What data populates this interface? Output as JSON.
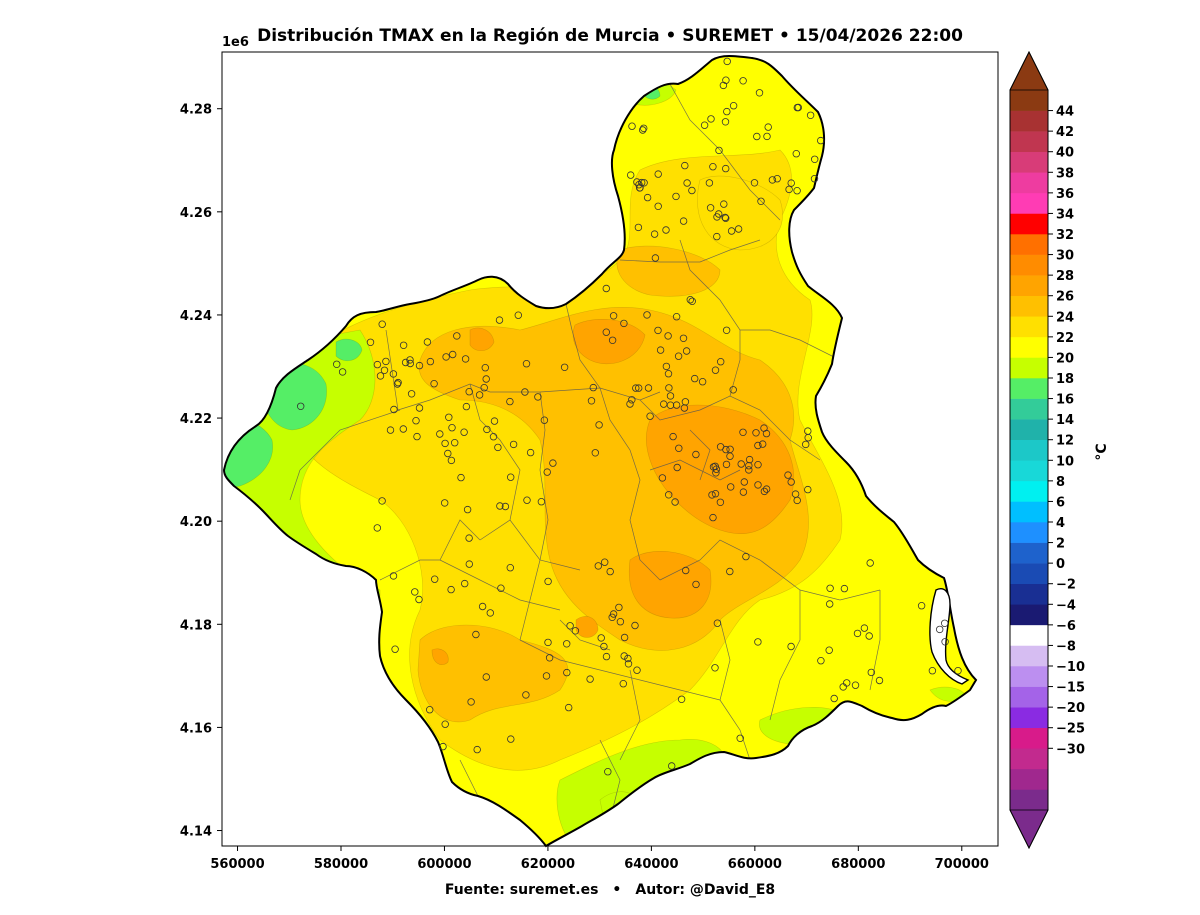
{
  "title": "Distribución TMAX en la Región de Murcia • SUREMET • 15/04/2026 22:00",
  "footer": {
    "source": "Fuente: suremet.es",
    "separator": "•",
    "author": "Autor: @David_E8"
  },
  "axes": {
    "y_offset_label": "1e6",
    "x_ticks": [
      "560000",
      "580000",
      "600000",
      "620000",
      "640000",
      "660000",
      "680000",
      "700000"
    ],
    "y_ticks": [
      "4.14",
      "4.16",
      "4.18",
      "4.20",
      "4.22",
      "4.24",
      "4.26",
      "4.28"
    ],
    "x_range": [
      557000,
      707000
    ],
    "y_range": [
      4137000,
      4291000
    ]
  },
  "colorbar": {
    "label": "°C",
    "tick_labels": [
      "44",
      "42",
      "40",
      "38",
      "36",
      "34",
      "32",
      "30",
      "28",
      "26",
      "24",
      "22",
      "20",
      "18",
      "16",
      "14",
      "12",
      "10",
      "8",
      "6",
      "4",
      "2",
      "0",
      "-2",
      "-4",
      "-6",
      "-8",
      "-10",
      "-15",
      "-20",
      "-25",
      "-30"
    ],
    "band_colors": [
      "#7b2b8c",
      "#a0288e",
      "#c22a8e",
      "#d81b8a",
      "#8a2be2",
      "#a463e8",
      "#bc8ff0",
      "#d6bdf2",
      "#ffffff",
      "#1a1a72",
      "#192f93",
      "#1a4bb4",
      "#1e62cc",
      "#1e90ff",
      "#00bfff",
      "#00f0f0",
      "#18d8d8",
      "#1cc8c8",
      "#20b2aa",
      "#33cc99",
      "#55ee66",
      "#c6ff00",
      "#ffff00",
      "#ffe000",
      "#ffc000",
      "#ffa400",
      "#ff8c00",
      "#ff7000",
      "#ff0000",
      "#ff3cb4",
      "#ee3ca0",
      "#d83c78",
      "#c03650",
      "#a83232",
      "#8b3a12"
    ],
    "top_arrow_color": "#8b3a12",
    "bottom_arrow_color": "#7b2b8c"
  },
  "legend_colors": {
    "sea": "#ffffff",
    "temp_20": "#55ee66",
    "temp_22": "#c6ff00",
    "temp_24": "#ffff00",
    "temp_26": "#ffe000",
    "temp_28": "#ffc000",
    "temp_30": "#ffa400"
  },
  "stations_note_count": 300
}
